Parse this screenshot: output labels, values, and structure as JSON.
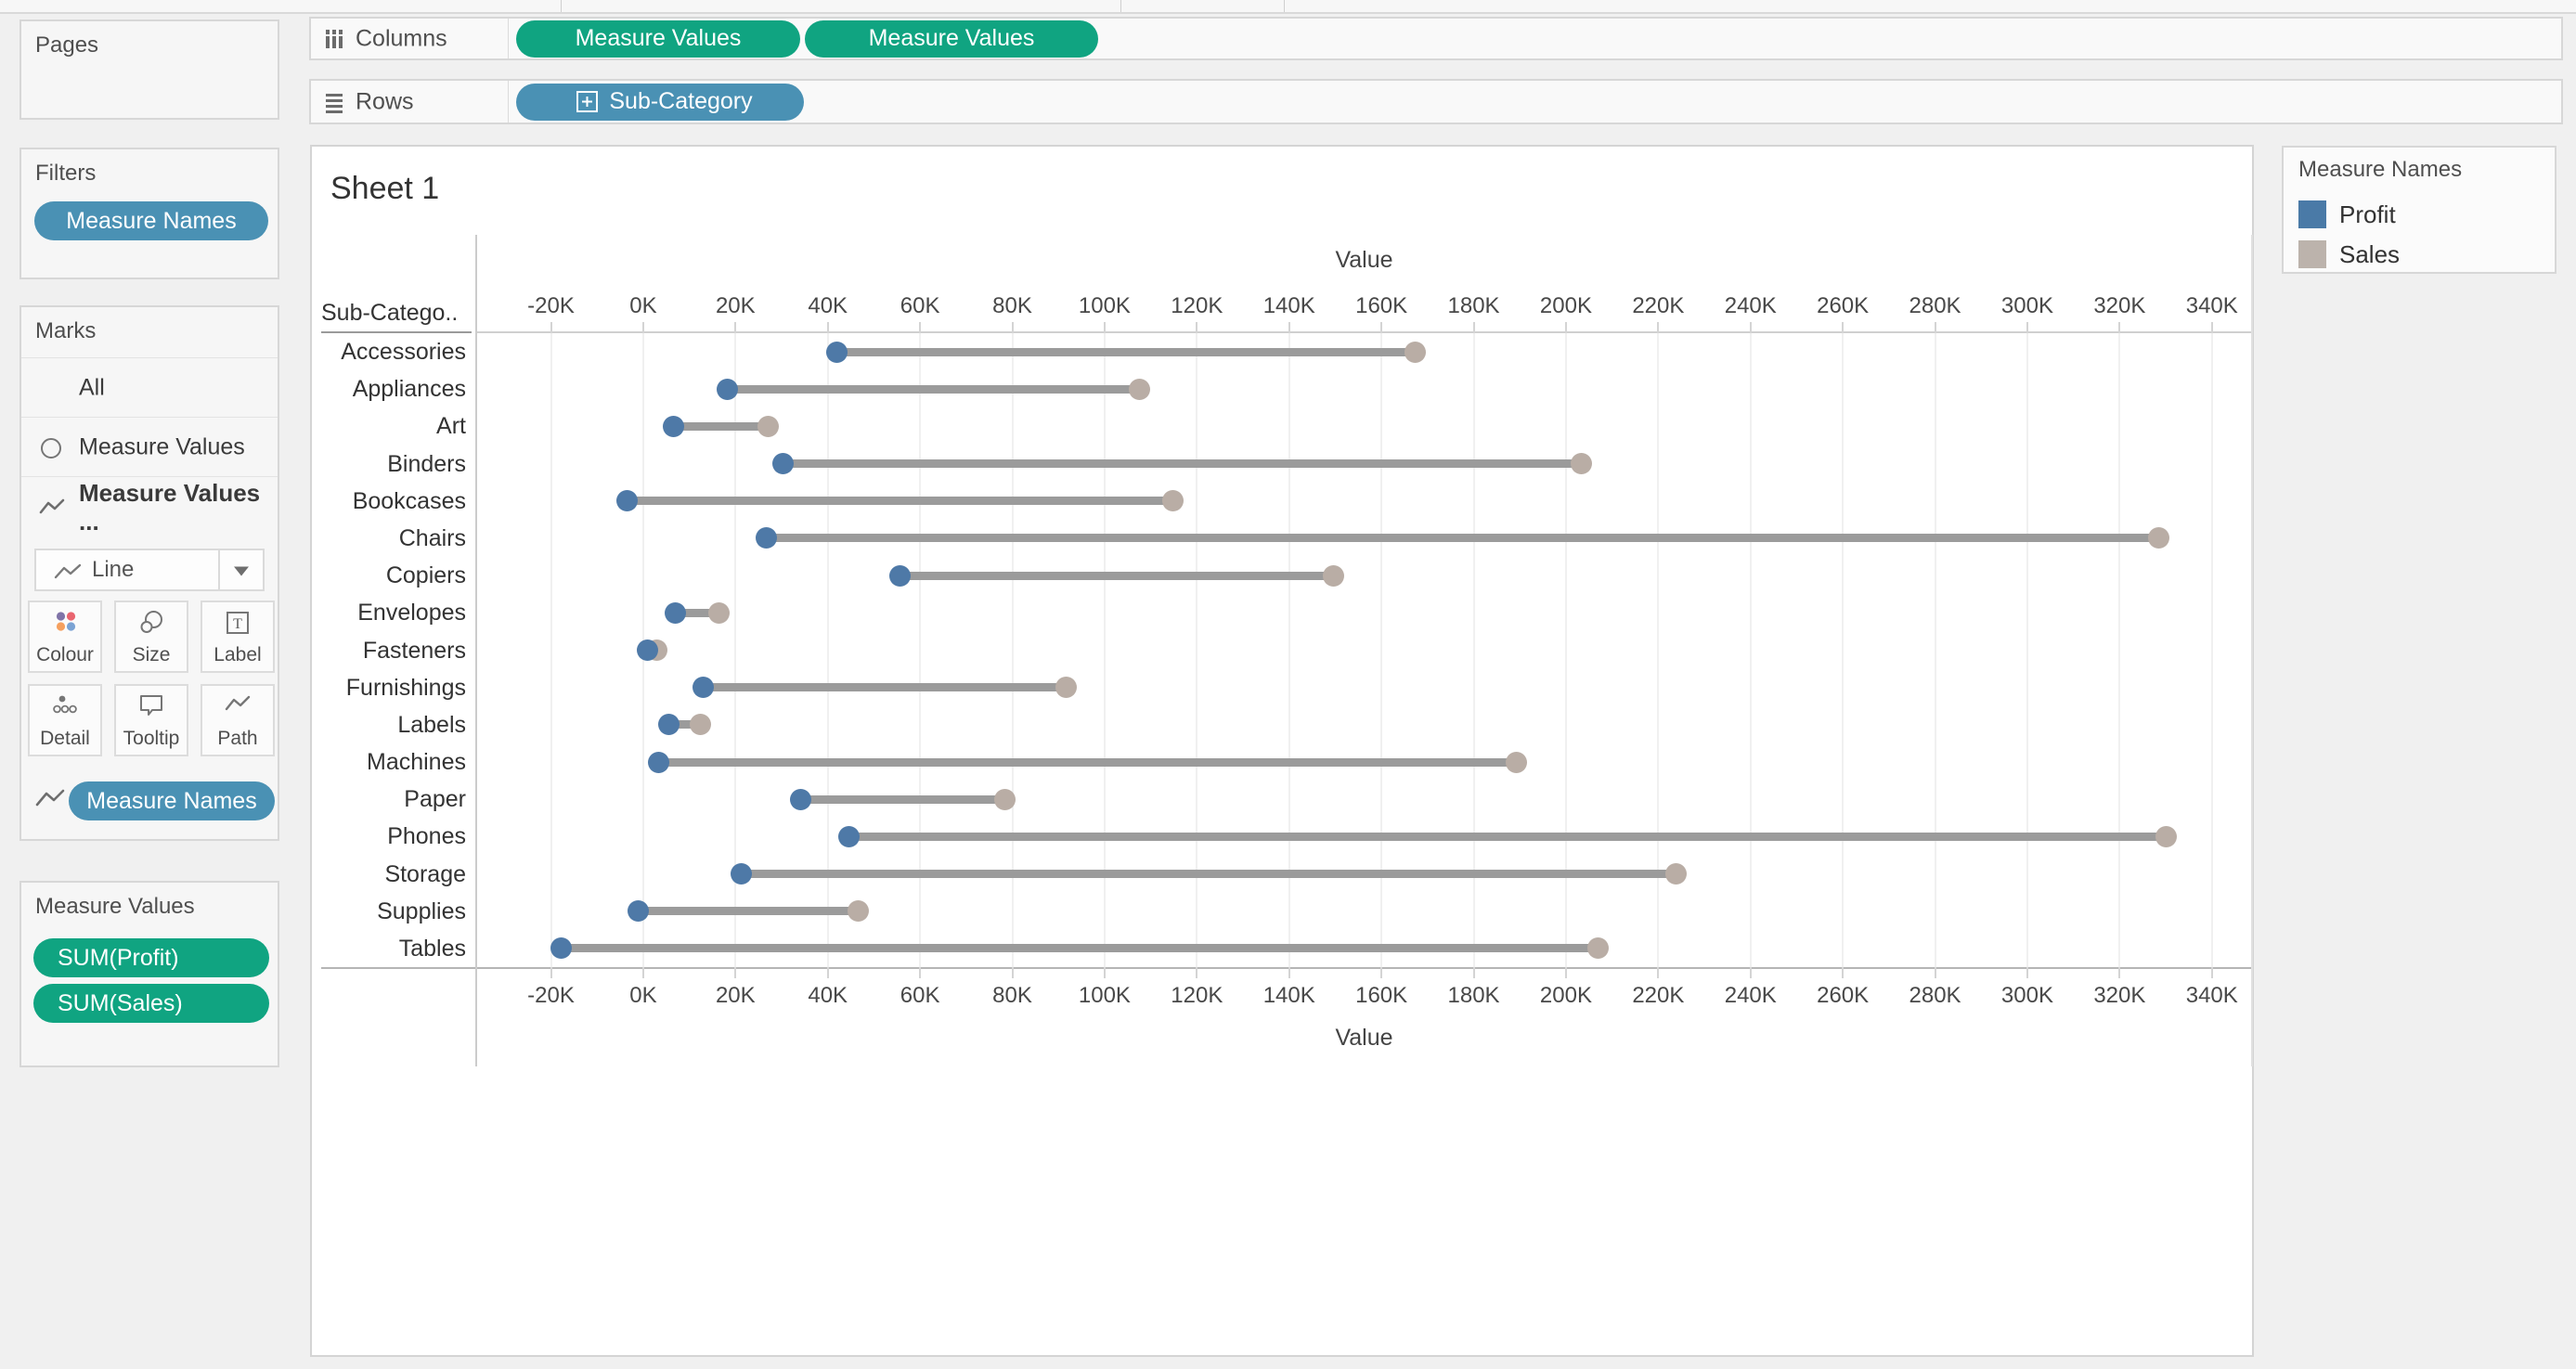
{
  "shelves": {
    "columns": {
      "label": "Columns",
      "pills": [
        "Measure Values",
        "Measure Values"
      ]
    },
    "rows": {
      "label": "Rows",
      "pills": [
        "Sub-Category"
      ]
    }
  },
  "panels": {
    "pages": {
      "title": "Pages"
    },
    "filters": {
      "title": "Filters",
      "pills": [
        "Measure Names"
      ]
    },
    "marks": {
      "title": "Marks",
      "cards": [
        "All",
        "Measure Values",
        "Measure Values ..."
      ],
      "mark_type": "Line",
      "buttons": [
        "Colour",
        "Size",
        "Label",
        "Detail",
        "Tooltip",
        "Path"
      ],
      "encoding_pills": [
        "Measure Names"
      ]
    },
    "measure_values": {
      "title": "Measure Values",
      "pills": [
        "SUM(Profit)",
        "SUM(Sales)"
      ]
    }
  },
  "sheet": {
    "title": "Sheet 1",
    "row_header_label": "Sub-Catego.."
  },
  "legend": {
    "title": "Measure Names",
    "items": [
      {
        "label": "Profit",
        "color": "#4a7aa7"
      },
      {
        "label": "Sales",
        "color": "#bcb3ac"
      }
    ]
  },
  "chart_data": {
    "type": "dumbbell",
    "orientation": "horizontal",
    "title": "Sheet 1",
    "categories": [
      "Accessories",
      "Appliances",
      "Art",
      "Binders",
      "Bookcases",
      "Chairs",
      "Copiers",
      "Envelopes",
      "Fasteners",
      "Furnishings",
      "Labels",
      "Machines",
      "Paper",
      "Phones",
      "Storage",
      "Supplies",
      "Tables"
    ],
    "series": [
      {
        "name": "Profit",
        "color": "#4e79a7",
        "values": [
          41937,
          18138,
          6528,
          30222,
          -3473,
          26590,
          55618,
          6964,
          950,
          13059,
          5546,
          3385,
          34054,
          44516,
          21279,
          -1189,
          -17725
        ]
      },
      {
        "name": "Sales",
        "color": "#b9ada5",
        "values": [
          167380,
          107532,
          27119,
          203413,
          114880,
          328449,
          149528,
          16476,
          3024,
          91705,
          12486,
          189239,
          78479,
          330007,
          223844,
          46674,
          206966
        ]
      }
    ],
    "connector_color": "#9b9b9b",
    "x_axis": {
      "title": "Value",
      "min": -36400,
      "max": 348900,
      "tick_values": [
        -20000,
        0,
        20000,
        40000,
        60000,
        80000,
        100000,
        120000,
        140000,
        160000,
        180000,
        200000,
        220000,
        240000,
        260000,
        280000,
        300000,
        320000,
        340000
      ],
      "tick_labels": [
        "-20K",
        "0K",
        "20K",
        "40K",
        "60K",
        "80K",
        "100K",
        "120K",
        "140K",
        "160K",
        "180K",
        "200K",
        "220K",
        "240K",
        "260K",
        "280K",
        "300K",
        "320K",
        "340K"
      ],
      "position": "top and bottom",
      "grid": true
    },
    "y_axis": {
      "title": "Sub-Category"
    },
    "legend_position": "top-right"
  }
}
